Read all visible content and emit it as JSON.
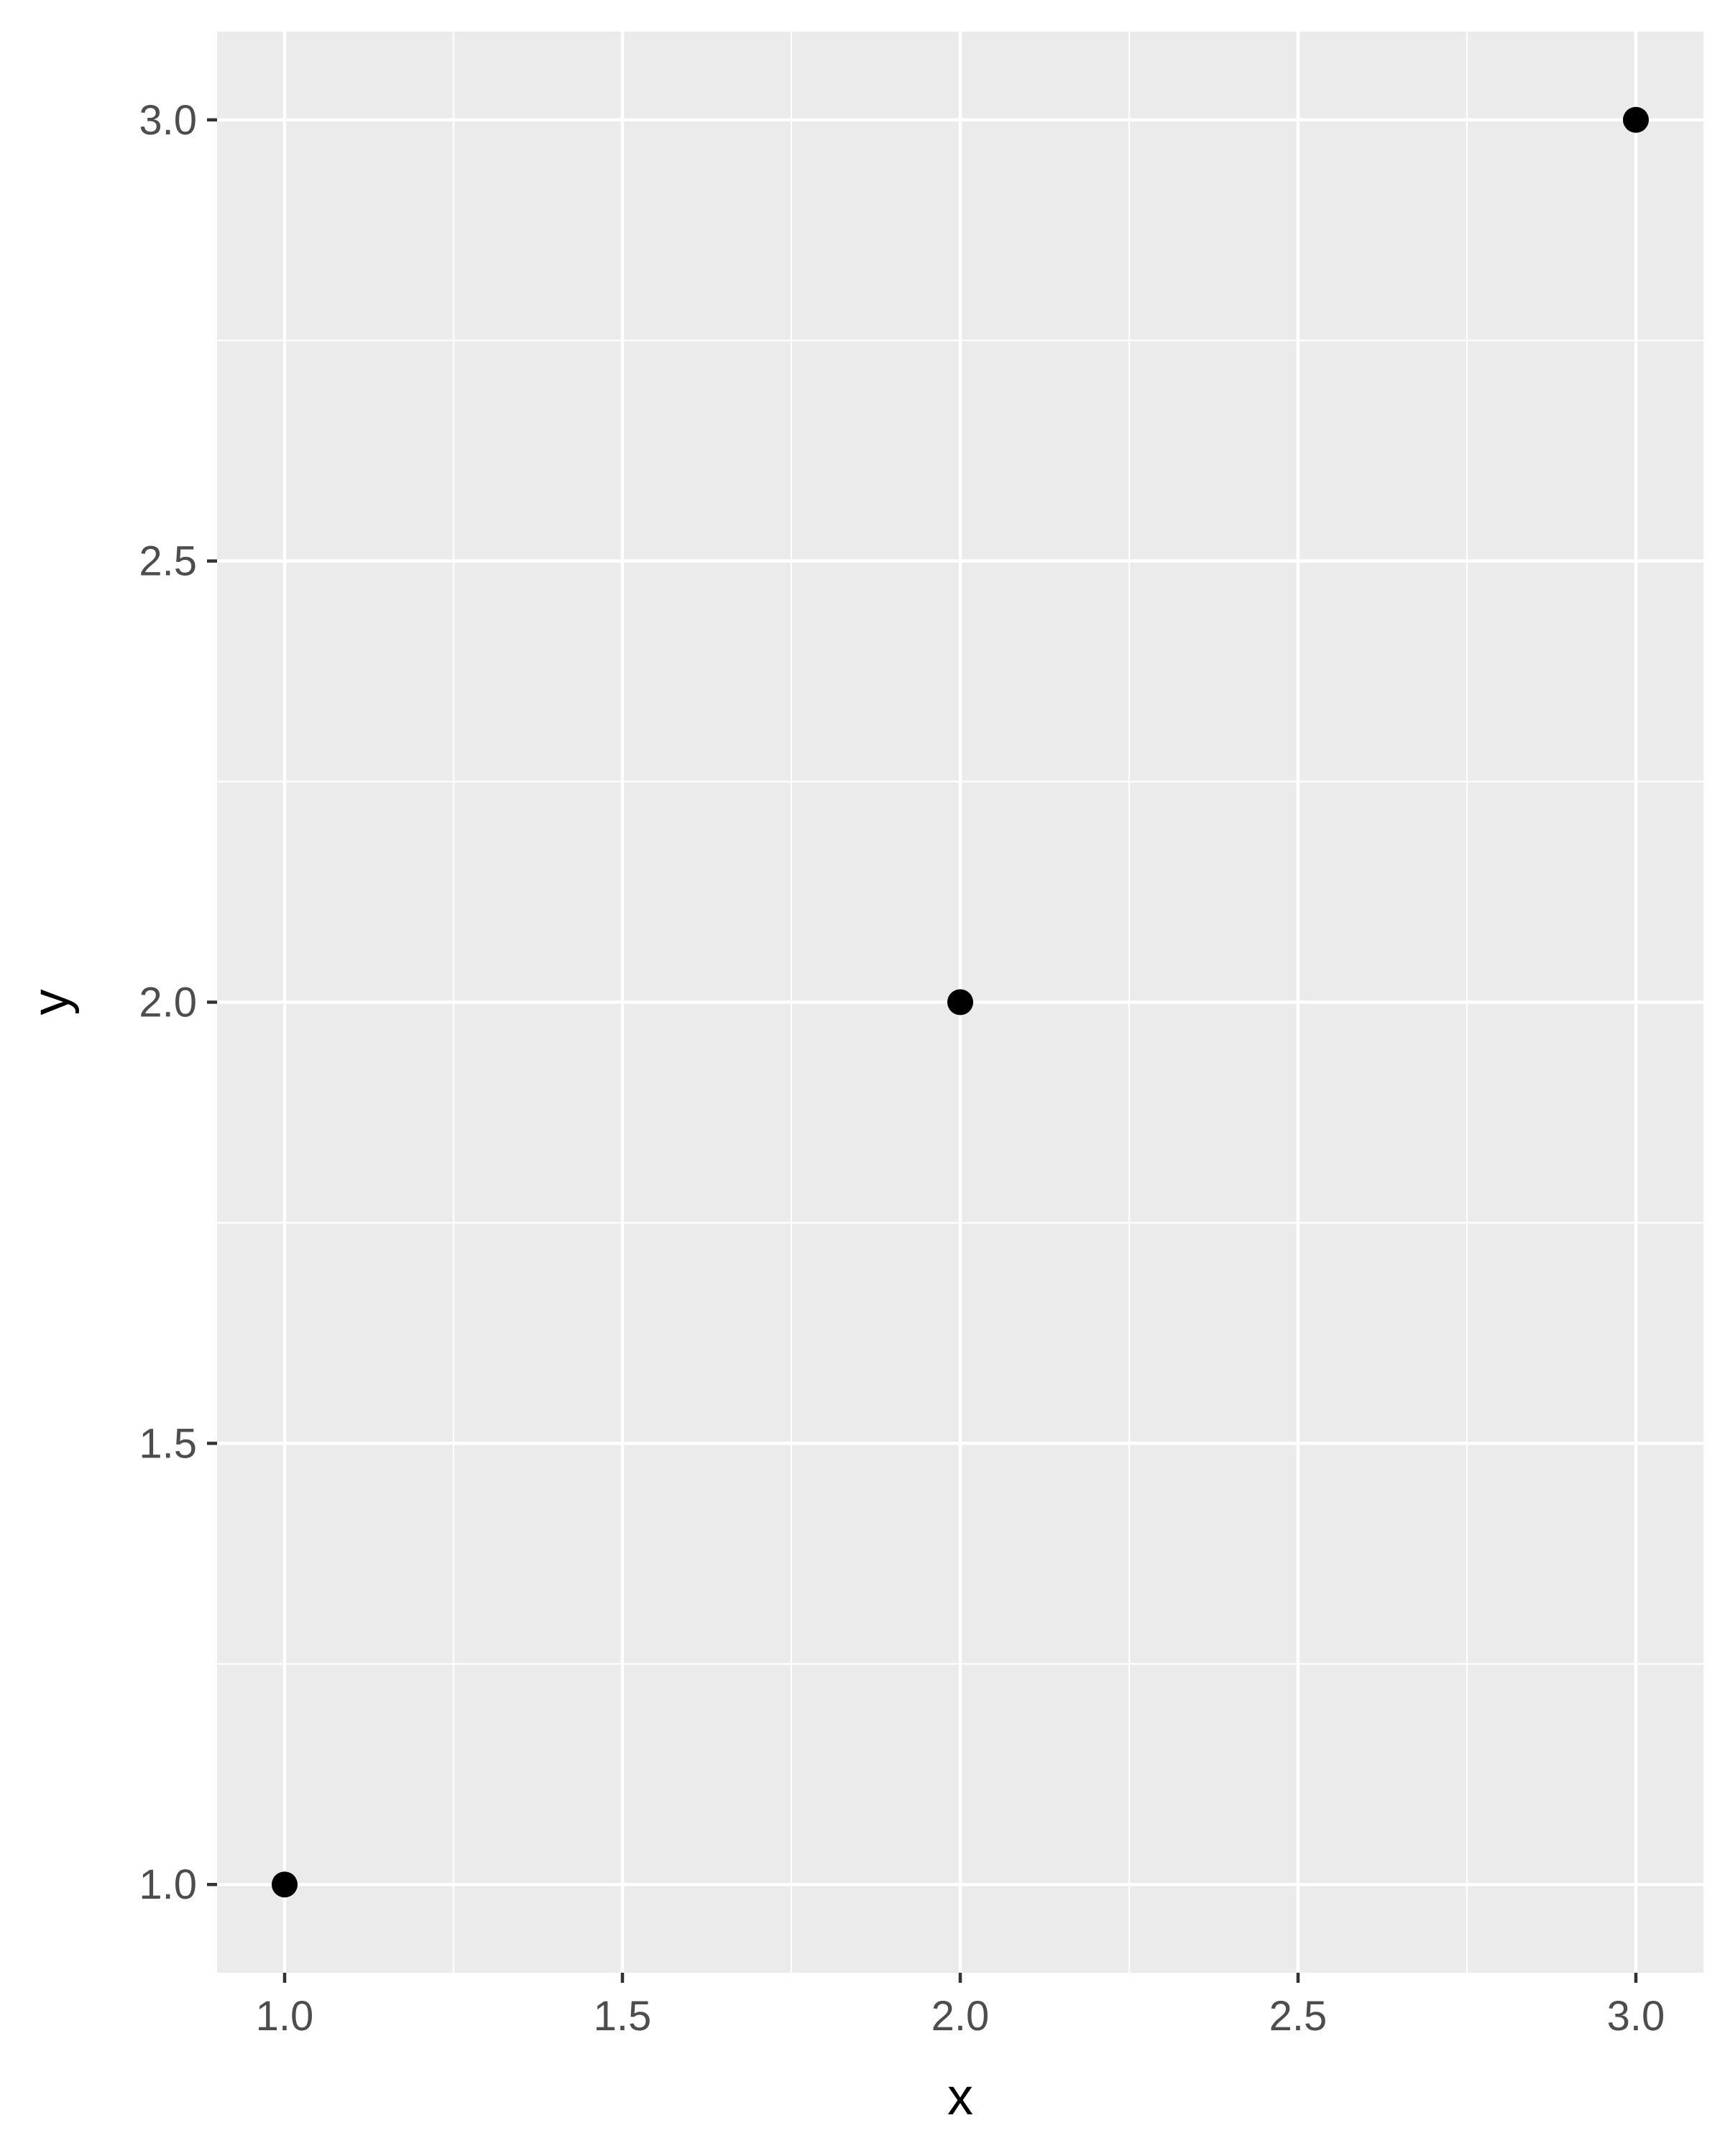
{
  "chart_data": {
    "type": "scatter",
    "title": "",
    "xlabel": "x",
    "ylabel": "y",
    "x": [
      1,
      2,
      3
    ],
    "y": [
      1,
      2,
      3
    ],
    "xlim": [
      0.9,
      3.1
    ],
    "ylim": [
      0.9,
      3.1
    ],
    "x_ticks": [
      "1.0",
      "1.5",
      "2.0",
      "2.5",
      "3.0"
    ],
    "y_ticks": [
      "1.0",
      "1.5",
      "2.0",
      "2.5",
      "3.0"
    ],
    "grid": true,
    "legend": "none",
    "colors": {
      "panel_background": "#ebebeb",
      "grid": "#ffffff",
      "point": "#000000",
      "tick_mark": "#333333"
    }
  }
}
